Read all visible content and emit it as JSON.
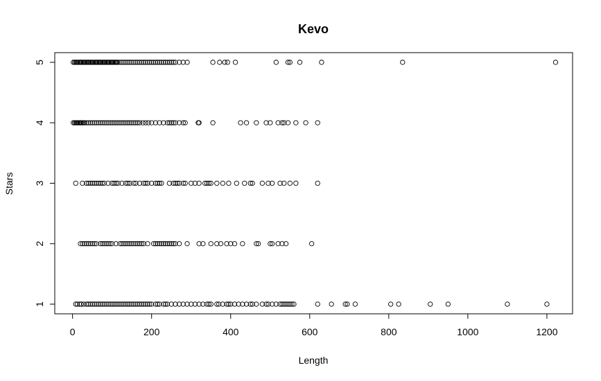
{
  "chart_data": {
    "type": "scatter",
    "title": "Kevo",
    "xlabel": "Length",
    "ylabel": "Stars",
    "xlim": [
      -45,
      1265
    ],
    "ylim": [
      0.84,
      5.16
    ],
    "x_ticks": [
      0,
      200,
      400,
      600,
      800,
      1000,
      1200
    ],
    "y_ticks": [
      1,
      2,
      3,
      4,
      5
    ],
    "grid": false,
    "legend": "none",
    "point_style": "open-circle",
    "colors": {
      "points": "#000000",
      "frame": "#000000"
    },
    "series": [
      {
        "y": 5,
        "x": [
          2,
          5,
          8,
          10,
          12,
          15,
          18,
          20,
          22,
          25,
          28,
          30,
          32,
          35,
          38,
          40,
          42,
          45,
          48,
          50,
          52,
          55,
          58,
          60,
          62,
          65,
          68,
          70,
          72,
          75,
          78,
          80,
          82,
          85,
          88,
          90,
          92,
          95,
          98,
          100,
          102,
          105,
          108,
          110,
          112,
          115,
          120,
          125,
          130,
          135,
          140,
          145,
          150,
          155,
          160,
          165,
          170,
          175,
          180,
          185,
          190,
          195,
          200,
          205,
          210,
          215,
          220,
          225,
          230,
          235,
          240,
          245,
          250,
          255,
          260,
          270,
          280,
          290,
          355,
          372,
          385,
          392,
          412,
          515,
          545,
          550,
          575,
          630,
          835,
          1222
        ]
      },
      {
        "y": 4,
        "x": [
          2,
          5,
          8,
          10,
          12,
          15,
          18,
          20,
          22,
          25,
          28,
          30,
          35,
          40,
          45,
          50,
          55,
          60,
          65,
          70,
          75,
          80,
          85,
          90,
          95,
          100,
          105,
          110,
          115,
          120,
          125,
          130,
          135,
          140,
          145,
          150,
          155,
          160,
          165,
          170,
          178,
          185,
          192,
          200,
          210,
          220,
          230,
          240,
          245,
          250,
          255,
          260,
          270,
          280,
          285,
          318,
          320,
          355,
          425,
          440,
          465,
          490,
          500,
          520,
          530,
          535,
          545,
          565,
          590,
          620
        ]
      },
      {
        "y": 3,
        "x": [
          8,
          25,
          35,
          40,
          45,
          50,
          55,
          60,
          65,
          70,
          75,
          80,
          90,
          100,
          105,
          110,
          115,
          125,
          135,
          140,
          145,
          155,
          160,
          170,
          180,
          185,
          190,
          200,
          210,
          215,
          220,
          225,
          245,
          255,
          260,
          265,
          270,
          280,
          285,
          300,
          310,
          320,
          335,
          340,
          345,
          350,
          365,
          380,
          395,
          415,
          435,
          450,
          455,
          480,
          495,
          505,
          525,
          535,
          550,
          565,
          620
        ]
      },
      {
        "y": 2,
        "x": [
          20,
          25,
          30,
          35,
          40,
          45,
          50,
          55,
          60,
          70,
          75,
          80,
          85,
          90,
          95,
          100,
          110,
          120,
          125,
          130,
          135,
          140,
          145,
          150,
          155,
          160,
          165,
          170,
          175,
          180,
          190,
          205,
          210,
          215,
          220,
          225,
          230,
          235,
          240,
          245,
          250,
          255,
          260,
          270,
          290,
          320,
          330,
          350,
          365,
          375,
          390,
          400,
          410,
          430,
          465,
          470,
          500,
          505,
          520,
          530,
          540,
          605
        ]
      },
      {
        "y": 1,
        "x": [
          8,
          12,
          18,
          22,
          28,
          35,
          40,
          45,
          50,
          55,
          60,
          65,
          70,
          75,
          80,
          85,
          90,
          95,
          100,
          105,
          110,
          115,
          120,
          125,
          130,
          135,
          140,
          145,
          150,
          155,
          160,
          165,
          170,
          175,
          180,
          185,
          190,
          195,
          200,
          210,
          215,
          220,
          230,
          235,
          240,
          250,
          260,
          270,
          280,
          290,
          300,
          310,
          320,
          330,
          340,
          345,
          350,
          365,
          370,
          380,
          390,
          395,
          400,
          410,
          420,
          430,
          440,
          450,
          455,
          465,
          480,
          490,
          495,
          505,
          515,
          525,
          530,
          535,
          540,
          545,
          550,
          555,
          560,
          620,
          655,
          690,
          695,
          715,
          805,
          825,
          905,
          950,
          1100,
          1200
        ]
      }
    ]
  }
}
